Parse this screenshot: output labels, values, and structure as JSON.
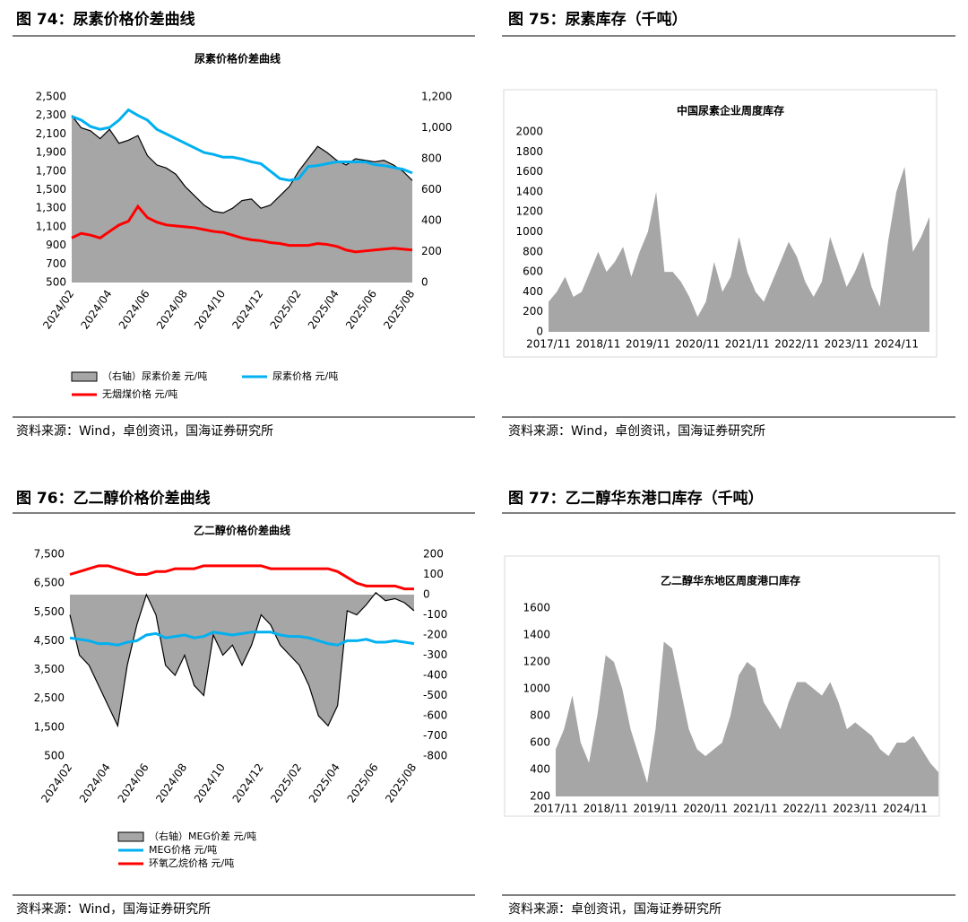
{
  "figures": [
    {
      "heading": "图 74：尿素价格价差曲线",
      "source": "资料来源：Wind，卓创资讯，国海证券研究所"
    },
    {
      "heading": "图 75：尿素库存（千吨）",
      "source": "资料来源：Wind，卓创资讯，国海证券研究所"
    },
    {
      "heading": "图 76：乙二醇价格价差曲线",
      "source": "资料来源：Wind，国海证券研究所"
    },
    {
      "heading": "图 77：乙二醇华东港口库存（千吨）",
      "source": "资料来源：卓创资讯，国海证券研究所"
    }
  ],
  "chart_data": [
    {
      "type": "combo",
      "title": "尿素价格价差曲线",
      "categories": [
        "2024/02",
        null,
        null,
        null,
        "2024/04",
        null,
        null,
        null,
        "2024/06",
        null,
        null,
        null,
        "2024/08",
        null,
        null,
        null,
        "2024/10",
        null,
        null,
        null,
        "2024/12",
        null,
        null,
        null,
        "2025/02",
        null,
        null,
        null,
        "2025/04",
        null,
        null,
        null,
        "2025/06",
        null,
        null,
        null,
        "2025/08"
      ],
      "series": [
        {
          "name": "（右轴）尿素价差 元/吨",
          "type": "area",
          "axis": "y2",
          "color": "#a6a6a6",
          "stroke": "#000000",
          "values": [
            1080,
            1000,
            980,
            930,
            990,
            900,
            920,
            950,
            820,
            760,
            740,
            700,
            620,
            560,
            500,
            460,
            450,
            480,
            530,
            540,
            480,
            500,
            560,
            620,
            720,
            800,
            880,
            840,
            790,
            760,
            800,
            790,
            780,
            790,
            760,
            720,
            660
          ]
        },
        {
          "name": "尿素价格 元/吨",
          "type": "line",
          "color": "#00b0f0",
          "values": [
            2290,
            2250,
            2180,
            2150,
            2170,
            2250,
            2360,
            2300,
            2250,
            2150,
            2100,
            2050,
            2000,
            1950,
            1900,
            1880,
            1850,
            1850,
            1830,
            1800,
            1780,
            1700,
            1620,
            1600,
            1620,
            1750,
            1760,
            1780,
            1800,
            1800,
            1800,
            1800,
            1770,
            1760,
            1740,
            1720,
            1680
          ]
        },
        {
          "name": "无烟煤价格 元/吨",
          "type": "line",
          "color": "#ff0000",
          "values": [
            980,
            1030,
            1010,
            980,
            1050,
            1120,
            1160,
            1320,
            1200,
            1150,
            1120,
            1110,
            1100,
            1090,
            1070,
            1050,
            1040,
            1010,
            980,
            960,
            950,
            930,
            920,
            900,
            900,
            900,
            920,
            910,
            890,
            850,
            830,
            840,
            850,
            860,
            870,
            860,
            850
          ]
        }
      ],
      "ylim": [
        500,
        2500
      ],
      "yticks": [
        500,
        700,
        900,
        {
          "value": 1100,
          "label": "1,100"
        },
        {
          "value": 1300,
          "label": "1,300"
        },
        {
          "value": 1500,
          "label": "1,500"
        },
        {
          "value": 1700,
          "label": "1,700"
        },
        {
          "value": 1900,
          "label": "1,900"
        },
        {
          "value": 2100,
          "label": "2,100"
        },
        {
          "value": 2300,
          "label": "2,300"
        },
        {
          "value": 2500,
          "label": "2,500"
        }
      ],
      "y2lim": [
        0,
        1200
      ],
      "y2ticks": [
        0,
        200,
        400,
        600,
        800,
        {
          "value": 1000,
          "label": "1,000"
        },
        {
          "value": 1200,
          "label": "1,200"
        }
      ],
      "legend": "bottom"
    },
    {
      "type": "area",
      "title": "中国尿素企业周度库存",
      "categories": [
        "2017/11",
        null,
        null,
        null,
        null,
        null,
        "2018/11",
        null,
        null,
        null,
        null,
        null,
        "2019/11",
        null,
        null,
        null,
        null,
        null,
        "2020/11",
        null,
        null,
        null,
        null,
        null,
        "2021/11",
        null,
        null,
        null,
        null,
        null,
        "2022/11",
        null,
        null,
        null,
        null,
        null,
        "2023/11",
        null,
        null,
        null,
        null,
        null,
        "2024/11",
        null,
        null,
        null,
        null
      ],
      "color": "#a6a6a6",
      "values": [
        300,
        400,
        550,
        350,
        400,
        600,
        800,
        600,
        700,
        850,
        550,
        800,
        1000,
        1400,
        600,
        600,
        500,
        350,
        150,
        300,
        700,
        400,
        550,
        950,
        600,
        400,
        300,
        500,
        700,
        900,
        750,
        500,
        350,
        500,
        950,
        700,
        450,
        600,
        800,
        450,
        250,
        900,
        1400,
        1650,
        800,
        950,
        1150
      ],
      "ylim": [
        0,
        2000
      ],
      "yticks": [
        0,
        200,
        400,
        600,
        800,
        1000,
        1200,
        1400,
        1600,
        1800,
        2000
      ]
    },
    {
      "type": "combo",
      "title": "乙二醇价格价差曲线",
      "categories": [
        "2024/02",
        null,
        null,
        null,
        "2024/04",
        null,
        null,
        null,
        "2024/06",
        null,
        null,
        null,
        "2024/08",
        null,
        null,
        null,
        "2024/10",
        null,
        null,
        null,
        "2024/12",
        null,
        null,
        null,
        "2025/02",
        null,
        null,
        null,
        "2025/04",
        null,
        null,
        null,
        "2025/06",
        null,
        null,
        null,
        "2025/08"
      ],
      "series": [
        {
          "name": "（右轴）MEG价差 元/吨",
          "type": "area",
          "axis": "y2",
          "color": "#a6a6a6",
          "stroke": "#000000",
          "values": [
            -100,
            -300,
            -350,
            -450,
            -550,
            -650,
            -350,
            -150,
            0,
            -100,
            -350,
            -400,
            -300,
            -450,
            -500,
            -200,
            -300,
            -250,
            -350,
            -250,
            -100,
            -150,
            -250,
            -300,
            -350,
            -450,
            -600,
            -650,
            -550,
            -80,
            -100,
            -50,
            10,
            -30,
            -20,
            -40,
            -80
          ]
        },
        {
          "name": "MEG价格 元/吨",
          "type": "line",
          "color": "#00b0f0",
          "values": [
            4600,
            4550,
            4500,
            4400,
            4400,
            4350,
            4450,
            4500,
            4700,
            4750,
            4600,
            4650,
            4700,
            4600,
            4650,
            4800,
            4750,
            4700,
            4750,
            4800,
            4800,
            4800,
            4700,
            4650,
            4650,
            4600,
            4500,
            4400,
            4350,
            4500,
            4500,
            4550,
            4450,
            4450,
            4500,
            4450,
            4400
          ]
        },
        {
          "name": "环氧乙烷价格 元/吨",
          "type": "line",
          "color": "#ff0000",
          "values": [
            6800,
            6900,
            7000,
            7100,
            7100,
            7000,
            6900,
            6800,
            6800,
            6900,
            6900,
            7000,
            7000,
            7000,
            7100,
            7100,
            7100,
            7100,
            7100,
            7100,
            7100,
            7000,
            7000,
            7000,
            7000,
            7000,
            7000,
            7000,
            6900,
            6700,
            6500,
            6400,
            6400,
            6400,
            6400,
            6300,
            6300
          ]
        }
      ],
      "ylim": [
        500,
        7500
      ],
      "yticks": [
        500,
        {
          "value": 1500,
          "label": "1,500"
        },
        {
          "value": 2500,
          "label": "2,500"
        },
        {
          "value": 3500,
          "label": "3,500"
        },
        {
          "value": 4500,
          "label": "4,500"
        },
        {
          "value": 5500,
          "label": "5,500"
        },
        {
          "value": 6500,
          "label": "6,500"
        },
        {
          "value": 7500,
          "label": "7,500"
        }
      ],
      "y2lim": [
        -800,
        200
      ],
      "y2ticks": [
        -800,
        -700,
        -600,
        -500,
        -400,
        -300,
        -200,
        -100,
        0,
        100,
        200
      ],
      "legend": "bottom"
    },
    {
      "type": "area",
      "title": "乙二醇华东地区周度港口库存",
      "categories": [
        "2017/11",
        null,
        null,
        null,
        null,
        null,
        "2018/11",
        null,
        null,
        null,
        null,
        null,
        "2019/11",
        null,
        null,
        null,
        null,
        null,
        "2020/11",
        null,
        null,
        null,
        null,
        null,
        "2021/11",
        null,
        null,
        null,
        null,
        null,
        "2022/11",
        null,
        null,
        null,
        null,
        null,
        "2023/11",
        null,
        null,
        null,
        null,
        null,
        "2024/11",
        null,
        null,
        null,
        null
      ],
      "color": "#a6a6a6",
      "values": [
        550,
        700,
        950,
        600,
        450,
        800,
        1250,
        1200,
        1000,
        700,
        500,
        300,
        700,
        1350,
        1300,
        1000,
        700,
        550,
        500,
        550,
        600,
        800,
        1100,
        1200,
        1150,
        900,
        800,
        700,
        900,
        1050,
        1050,
        1000,
        950,
        1050,
        900,
        700,
        750,
        700,
        650,
        550,
        500,
        600,
        600,
        650,
        550,
        450,
        380
      ],
      "ylim": [
        200,
        1600
      ],
      "yticks": [
        200,
        400,
        600,
        800,
        1000,
        1200,
        1400,
        1600
      ]
    }
  ]
}
